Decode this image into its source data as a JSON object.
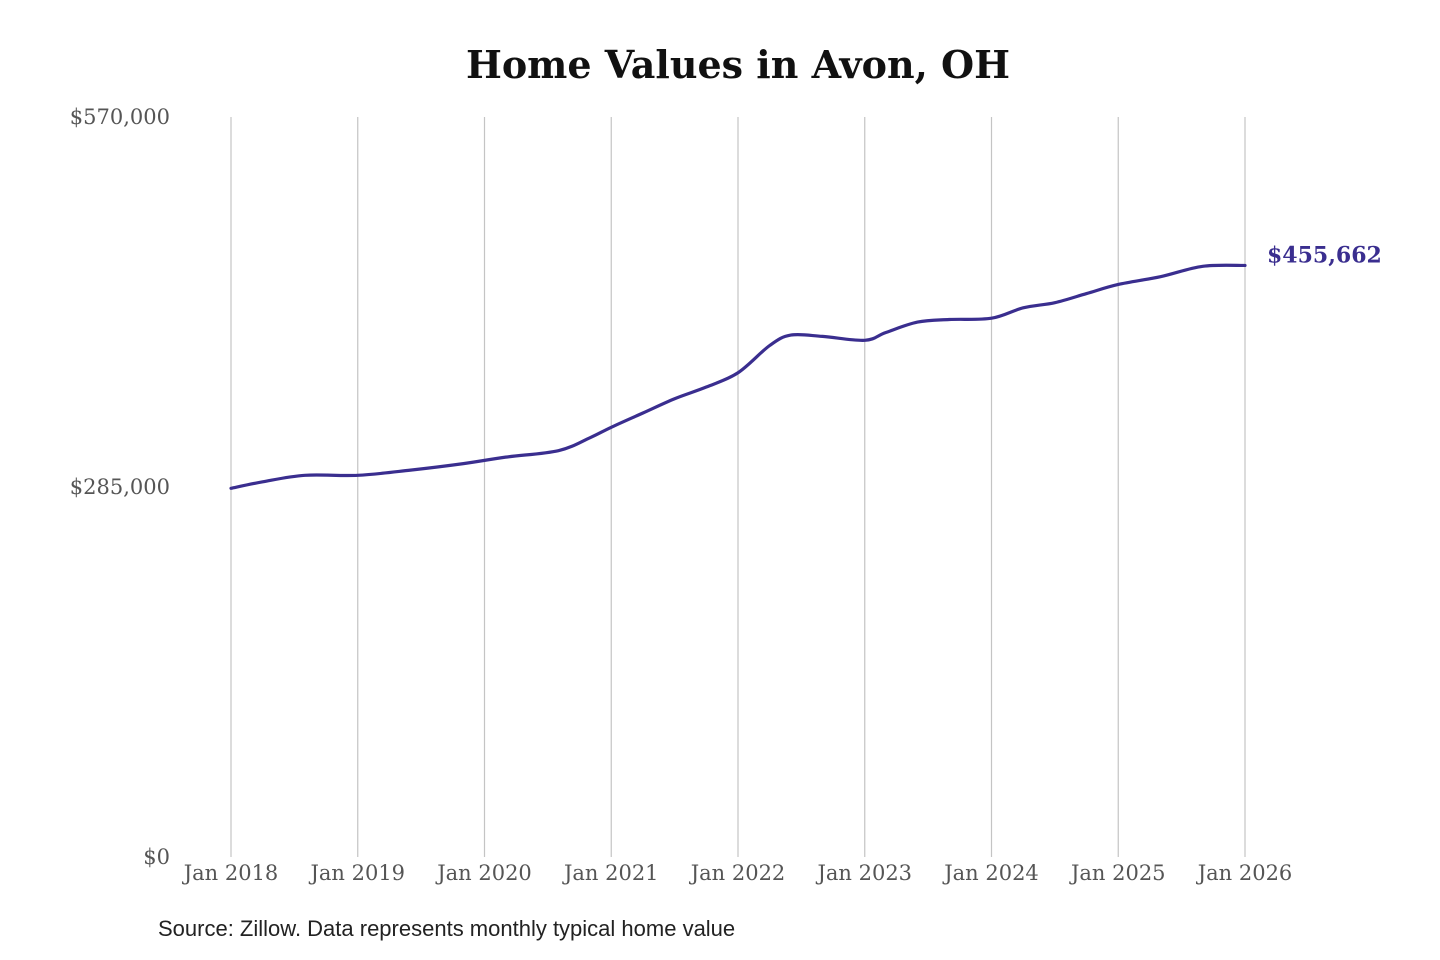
{
  "chart_data": {
    "type": "line",
    "title": "Home Values in Avon, OH",
    "xlabel": "",
    "ylabel": "",
    "ylim": [
      0,
      570000
    ],
    "y_ticks": [
      0,
      285000,
      570000
    ],
    "y_tick_labels": [
      "$0",
      "$285,000",
      "$570,000"
    ],
    "x_ticks": [
      "2018-01",
      "2019-01",
      "2020-01",
      "2021-01",
      "2022-01",
      "2023-01",
      "2024-01",
      "2025-01",
      "2026-01"
    ],
    "x_tick_labels": [
      "Jan 2018",
      "Jan 2019",
      "Jan 2020",
      "Jan 2021",
      "Jan 2022",
      "Jan 2023",
      "Jan 2024",
      "Jan 2025",
      "Jan 2026"
    ],
    "grid": "vertical",
    "legend": "none",
    "line_color": "#3a2e8f",
    "end_label": "$455,662",
    "source_text": "Source: Zillow. Data represents monthly typical home value",
    "series": [
      {
        "x": [
          "2018-01",
          "2018-04",
          "2018-08",
          "2019-01",
          "2019-06",
          "2019-11",
          "2020-03",
          "2020-08",
          "2020-11",
          "2021-01",
          "2021-04",
          "2021-07",
          "2021-10",
          "2022-01",
          "2022-04",
          "2022-06",
          "2022-09",
          "2023-01",
          "2023-03",
          "2023-06",
          "2023-09",
          "2024-01",
          "2024-04",
          "2024-07",
          "2024-10",
          "2025-01",
          "2025-05",
          "2025-09",
          "2026-01"
        ],
        "values": [
          284000,
          289000,
          294000,
          294000,
          298000,
          303000,
          308000,
          313000,
          323000,
          331000,
          342000,
          353000,
          362000,
          373000,
          394000,
          402000,
          401000,
          398000,
          404000,
          412000,
          414000,
          415000,
          423000,
          427000,
          434000,
          441000,
          447000,
          455000,
          455662
        ]
      }
    ]
  }
}
